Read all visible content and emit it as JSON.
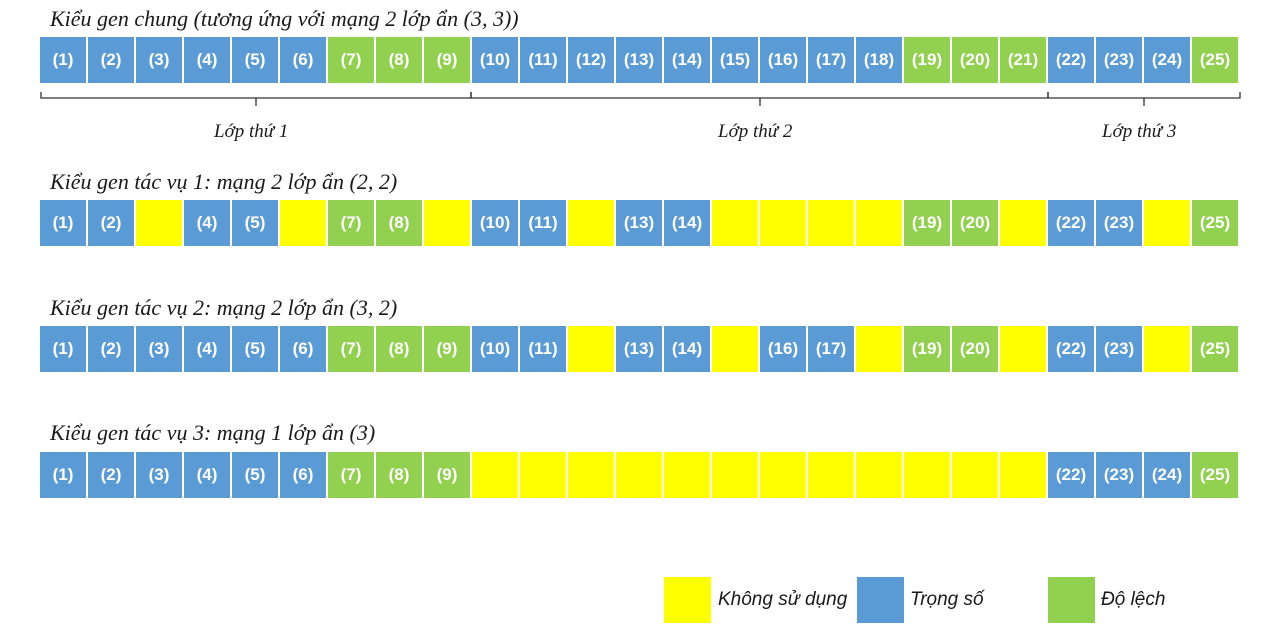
{
  "genotypes": [
    {
      "title": "Kiểu gen chung (tương ứng với mạng 2 lớp ẩn (3, 3))",
      "cells": [
        {
          "label": "(1)",
          "type": "weight"
        },
        {
          "label": "(2)",
          "type": "weight"
        },
        {
          "label": "(3)",
          "type": "weight"
        },
        {
          "label": "(4)",
          "type": "weight"
        },
        {
          "label": "(5)",
          "type": "weight"
        },
        {
          "label": "(6)",
          "type": "weight"
        },
        {
          "label": "(7)",
          "type": "bias"
        },
        {
          "label": "(8)",
          "type": "bias"
        },
        {
          "label": "(9)",
          "type": "bias"
        },
        {
          "label": "(10)",
          "type": "weight"
        },
        {
          "label": "(11)",
          "type": "weight"
        },
        {
          "label": "(12)",
          "type": "weight"
        },
        {
          "label": "(13)",
          "type": "weight"
        },
        {
          "label": "(14)",
          "type": "weight"
        },
        {
          "label": "(15)",
          "type": "weight"
        },
        {
          "label": "(16)",
          "type": "weight"
        },
        {
          "label": "(17)",
          "type": "weight"
        },
        {
          "label": "(18)",
          "type": "weight"
        },
        {
          "label": "(19)",
          "type": "bias"
        },
        {
          "label": "(20)",
          "type": "bias"
        },
        {
          "label": "(21)",
          "type": "bias"
        },
        {
          "label": "(22)",
          "type": "weight"
        },
        {
          "label": "(23)",
          "type": "weight"
        },
        {
          "label": "(24)",
          "type": "weight"
        },
        {
          "label": "(25)",
          "type": "bias"
        }
      ]
    },
    {
      "title": "Kiểu gen tác vụ 1: mạng 2 lớp ẩn (2, 2)",
      "cells": [
        {
          "label": "(1)",
          "type": "weight"
        },
        {
          "label": "(2)",
          "type": "weight"
        },
        {
          "label": "",
          "type": "unused"
        },
        {
          "label": "(4)",
          "type": "weight"
        },
        {
          "label": "(5)",
          "type": "weight"
        },
        {
          "label": "",
          "type": "unused"
        },
        {
          "label": "(7)",
          "type": "bias"
        },
        {
          "label": "(8)",
          "type": "bias"
        },
        {
          "label": "",
          "type": "unused"
        },
        {
          "label": "(10)",
          "type": "weight"
        },
        {
          "label": "(11)",
          "type": "weight"
        },
        {
          "label": "",
          "type": "unused"
        },
        {
          "label": "(13)",
          "type": "weight"
        },
        {
          "label": "(14)",
          "type": "weight"
        },
        {
          "label": "",
          "type": "unused"
        },
        {
          "label": "",
          "type": "unused"
        },
        {
          "label": "",
          "type": "unused"
        },
        {
          "label": "",
          "type": "unused"
        },
        {
          "label": "(19)",
          "type": "bias"
        },
        {
          "label": "(20)",
          "type": "bias"
        },
        {
          "label": "",
          "type": "unused"
        },
        {
          "label": "(22)",
          "type": "weight"
        },
        {
          "label": "(23)",
          "type": "weight"
        },
        {
          "label": "",
          "type": "unused"
        },
        {
          "label": "(25)",
          "type": "bias"
        }
      ]
    },
    {
      "title": "Kiểu gen tác vụ 2: mạng 2 lớp ẩn (3, 2)",
      "cells": [
        {
          "label": "(1)",
          "type": "weight"
        },
        {
          "label": "(2)",
          "type": "weight"
        },
        {
          "label": "(3)",
          "type": "weight"
        },
        {
          "label": "(4)",
          "type": "weight"
        },
        {
          "label": "(5)",
          "type": "weight"
        },
        {
          "label": "(6)",
          "type": "weight"
        },
        {
          "label": "(7)",
          "type": "bias"
        },
        {
          "label": "(8)",
          "type": "bias"
        },
        {
          "label": "(9)",
          "type": "bias"
        },
        {
          "label": "(10)",
          "type": "weight"
        },
        {
          "label": "(11)",
          "type": "weight"
        },
        {
          "label": "",
          "type": "unused"
        },
        {
          "label": "(13)",
          "type": "weight"
        },
        {
          "label": "(14)",
          "type": "weight"
        },
        {
          "label": "",
          "type": "unused"
        },
        {
          "label": "(16)",
          "type": "weight"
        },
        {
          "label": "(17)",
          "type": "weight"
        },
        {
          "label": "",
          "type": "unused"
        },
        {
          "label": "(19)",
          "type": "bias"
        },
        {
          "label": "(20)",
          "type": "bias"
        },
        {
          "label": "",
          "type": "unused"
        },
        {
          "label": "(22)",
          "type": "weight"
        },
        {
          "label": "(23)",
          "type": "weight"
        },
        {
          "label": "",
          "type": "unused"
        },
        {
          "label": "(25)",
          "type": "bias"
        }
      ]
    },
    {
      "title": "Kiểu gen tác vụ 3: mạng 1 lớp ẩn (3)",
      "cells": [
        {
          "label": "(1)",
          "type": "weight"
        },
        {
          "label": "(2)",
          "type": "weight"
        },
        {
          "label": "(3)",
          "type": "weight"
        },
        {
          "label": "(4)",
          "type": "weight"
        },
        {
          "label": "(5)",
          "type": "weight"
        },
        {
          "label": "(6)",
          "type": "weight"
        },
        {
          "label": "(7)",
          "type": "bias"
        },
        {
          "label": "(8)",
          "type": "bias"
        },
        {
          "label": "(9)",
          "type": "bias"
        },
        {
          "label": "",
          "type": "unused"
        },
        {
          "label": "",
          "type": "unused"
        },
        {
          "label": "",
          "type": "unused"
        },
        {
          "label": "",
          "type": "unused"
        },
        {
          "label": "",
          "type": "unused"
        },
        {
          "label": "",
          "type": "unused"
        },
        {
          "label": "",
          "type": "unused"
        },
        {
          "label": "",
          "type": "unused"
        },
        {
          "label": "",
          "type": "unused"
        },
        {
          "label": "",
          "type": "unused"
        },
        {
          "label": "",
          "type": "unused"
        },
        {
          "label": "",
          "type": "unused"
        },
        {
          "label": "(22)",
          "type": "weight"
        },
        {
          "label": "(23)",
          "type": "weight"
        },
        {
          "label": "(24)",
          "type": "weight"
        },
        {
          "label": "(25)",
          "type": "bias"
        }
      ]
    }
  ],
  "layers": [
    {
      "label": "Lớp thứ 1",
      "from_cell": 1,
      "to_cell": 9
    },
    {
      "label": "Lớp thứ 2",
      "from_cell": 10,
      "to_cell": 21
    },
    {
      "label": "Lớp thứ 3",
      "from_cell": 22,
      "to_cell": 25
    }
  ],
  "legend": {
    "unused": "Không sử dụng",
    "weight": "Trọng số",
    "bias": "Độ lệch"
  },
  "colors": {
    "weight": "#5b9bd5",
    "bias": "#92d050",
    "unused": "#ffff00"
  }
}
